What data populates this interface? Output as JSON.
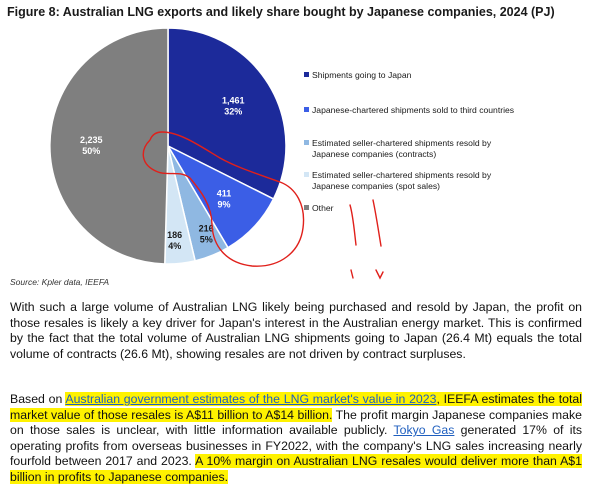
{
  "figure": {
    "title": "Figure 8: Australian LNG exports and likely share bought by Japanese companies, 2024 (PJ)",
    "source": "Source: Kpler data, IEEFA"
  },
  "chart_data": {
    "type": "pie",
    "title": "Figure 8: Australian LNG exports and likely share bought by Japanese companies, 2024 (PJ)",
    "unit": "PJ",
    "legend_position": "right",
    "slices": [
      {
        "name": "Shipments going to Japan",
        "value": 1461,
        "value_label": "1,461",
        "percent_label": "32%",
        "color": "#1c2a9a"
      },
      {
        "name": "Japanese-chartered shipments sold to third countries",
        "value": 411,
        "value_label": "411",
        "percent_label": "9%",
        "color": "#3b5ee6"
      },
      {
        "name": "Estimated seller-chartered shipments resold by Japanese companies (contracts)",
        "value": 216,
        "value_label": "216",
        "percent_label": "5%",
        "color": "#8fb8e2"
      },
      {
        "name": "Estimated seller-chartered shipments resold by Japanese companies (spot sales)",
        "value": 186,
        "value_label": "186",
        "percent_label": "4%",
        "color": "#d3e6f5"
      },
      {
        "name": "Other",
        "value": 2235,
        "value_label": "2,235",
        "percent_label": "50%",
        "color": "#7f7f7f"
      }
    ],
    "legend_lines": [
      [
        "Shipments going to Japan"
      ],
      [
        "Japanese-chartered shipments sold to third countries"
      ],
      [
        "Estimated seller-chartered shipments resold by",
        "Japanese companies (contracts)"
      ],
      [
        "Estimated seller-chartered shipments resold by",
        "Japanese companies (spot sales)"
      ],
      [
        "Other"
      ]
    ]
  },
  "body": {
    "para1": "With such a large volume of Australian LNG likely being purchased and resold by Japan, the profit on those resales is likely a key driver for Japan's interest in the Australian energy market. This is confirmed by the fact that the total volume of Australian LNG shipments going to Japan (26.4 Mt) equals the total volume of contracts (26.6 Mt), showing resales are not driven by contract surpluses.",
    "para2": {
      "t1": "Based on ",
      "link1": "Australian government estimates of the LNG market's value in 2023",
      "t2": ", IEEFA estimates the total market value of those resales is A$11 billion to A$14 billion.",
      "t3": " The profit margin Japanese companies make on those sales is unclear, with little information available publicly. ",
      "link2": "Tokyo Gas",
      "t4": " generated 17% of its operating profits from overseas businesses in FY2022, with the company's LNG sales increasing nearly fourfold between 2017 and 2023. ",
      "t5": "A 10% margin on Australian LNG resales would deliver more than A$1 billion in profits to Japanese companies."
    }
  }
}
